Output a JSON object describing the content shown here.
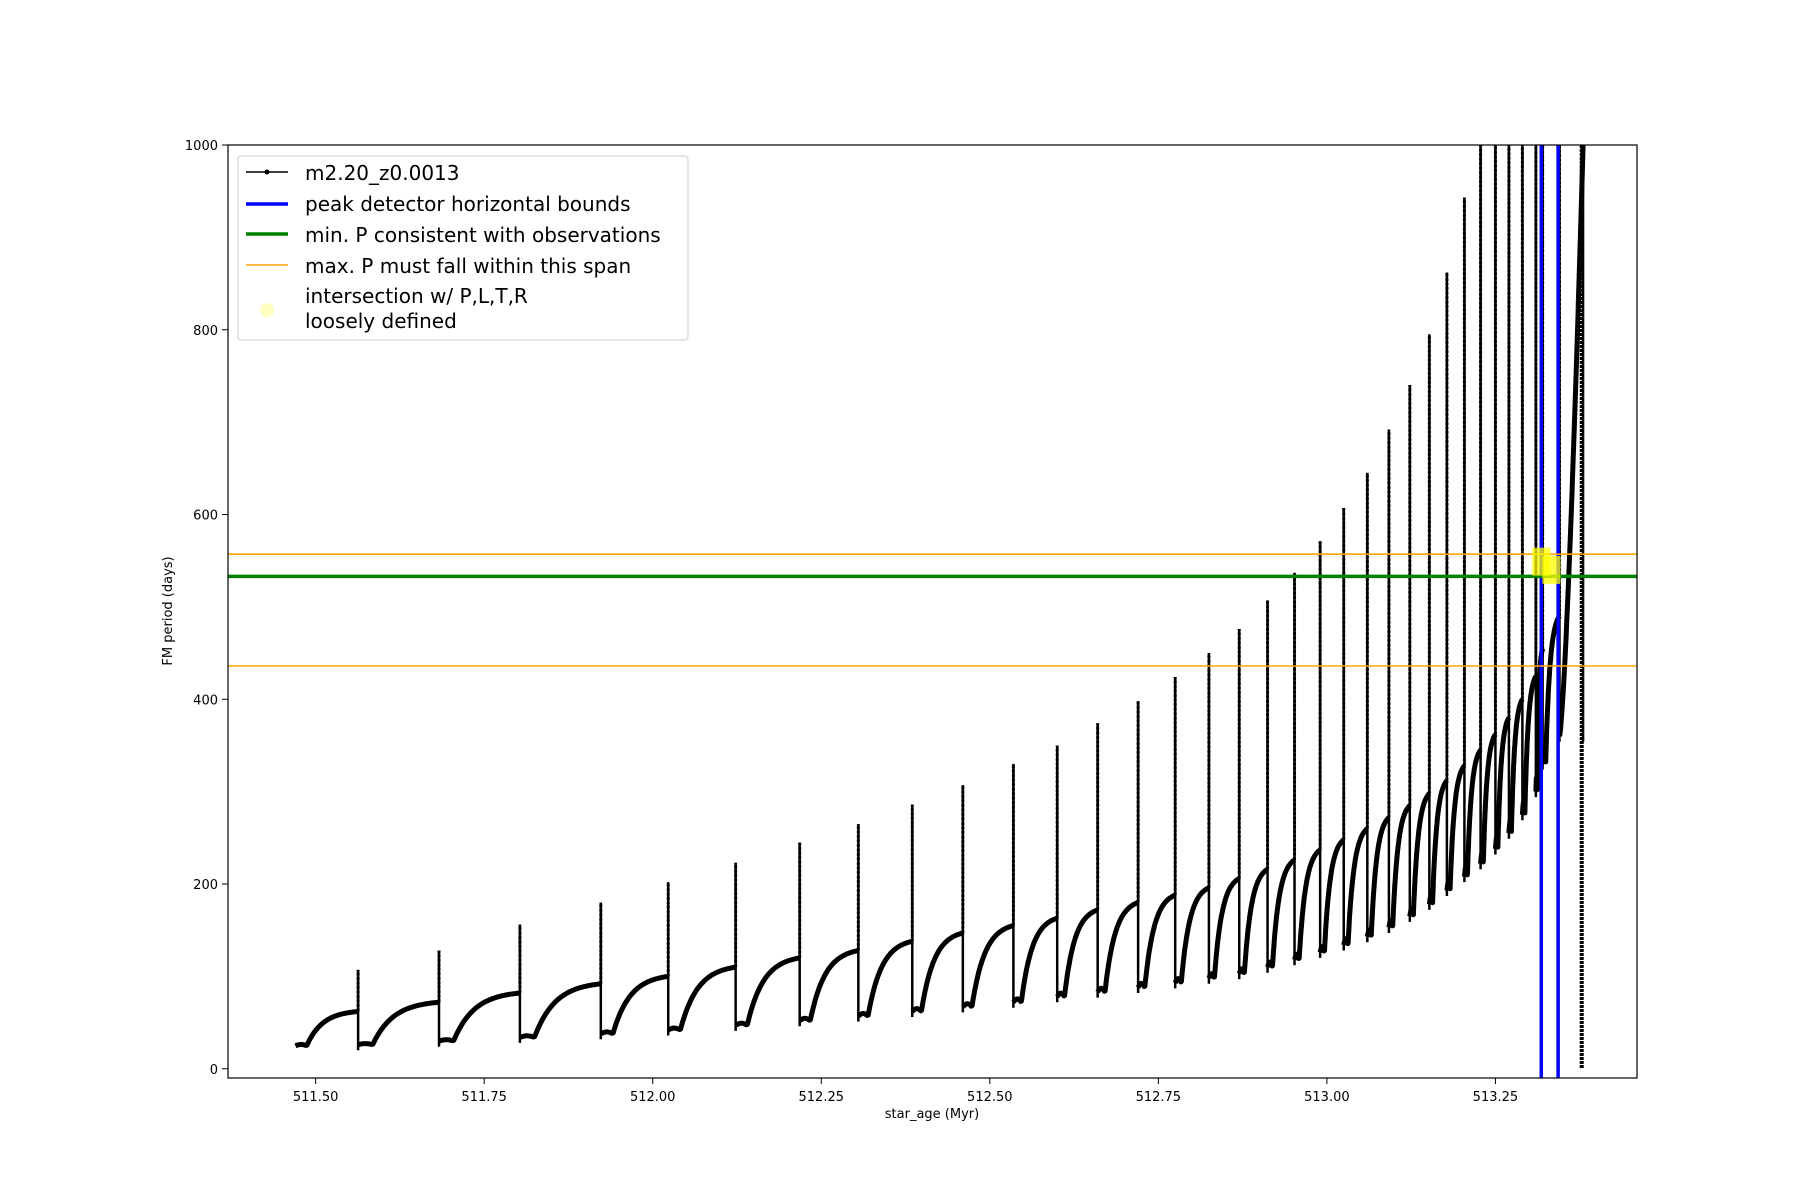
{
  "chart_data": {
    "type": "line",
    "title": "",
    "xlabel": "star_age (Myr)",
    "ylabel": "FM period (days)",
    "xlim": [
      511.37,
      513.46
    ],
    "ylim": [
      -10,
      1000
    ],
    "xticks": [
      511.5,
      511.75,
      512.0,
      512.25,
      512.5,
      512.75,
      513.0,
      513.25
    ],
    "xtick_labels": [
      "511.50",
      "511.75",
      "512.00",
      "512.25",
      "512.50",
      "512.75",
      "513.00",
      "513.25"
    ],
    "yticks": [
      0,
      200,
      400,
      600,
      800,
      1000
    ],
    "ytick_labels": [
      "0",
      "200",
      "400",
      "600",
      "800",
      "1000"
    ],
    "grid": false,
    "legend_position": "upper-left",
    "series": [
      {
        "name": "m2.20_z0.0013",
        "color": "#000000",
        "style": "line-with-dots",
        "description_segments": "thermal pulse cycles: each cycle rises from a trough to a plateau, then a sharp spike",
        "cycles": [
          {
            "start": 511.47,
            "end": 511.563,
            "low": 25,
            "high": 62,
            "spike": 107
          },
          {
            "start": 511.563,
            "end": 511.683,
            "low": 26,
            "high": 72,
            "spike": 128
          },
          {
            "start": 511.683,
            "end": 511.803,
            "low": 30,
            "high": 82,
            "spike": 156
          },
          {
            "start": 511.803,
            "end": 511.923,
            "low": 34,
            "high": 92,
            "spike": 180
          },
          {
            "start": 511.923,
            "end": 512.023,
            "low": 38,
            "high": 100,
            "spike": 202
          },
          {
            "start": 512.023,
            "end": 512.123,
            "low": 42,
            "high": 110,
            "spike": 223
          },
          {
            "start": 512.123,
            "end": 512.218,
            "low": 47,
            "high": 120,
            "spike": 245
          },
          {
            "start": 512.218,
            "end": 512.305,
            "low": 52,
            "high": 128,
            "spike": 265
          },
          {
            "start": 512.305,
            "end": 512.385,
            "low": 57,
            "high": 138,
            "spike": 286
          },
          {
            "start": 512.385,
            "end": 512.46,
            "low": 62,
            "high": 147,
            "spike": 307
          },
          {
            "start": 512.46,
            "end": 512.535,
            "low": 67,
            "high": 155,
            "spike": 330
          },
          {
            "start": 512.535,
            "end": 512.6,
            "low": 72,
            "high": 163,
            "spike": 350
          },
          {
            "start": 512.6,
            "end": 512.66,
            "low": 78,
            "high": 172,
            "spike": 374
          },
          {
            "start": 512.66,
            "end": 512.72,
            "low": 83,
            "high": 180,
            "spike": 398
          },
          {
            "start": 512.72,
            "end": 512.775,
            "low": 88,
            "high": 188,
            "spike": 424
          },
          {
            "start": 512.775,
            "end": 512.825,
            "low": 93,
            "high": 196,
            "spike": 450
          },
          {
            "start": 512.825,
            "end": 512.87,
            "low": 98,
            "high": 206,
            "spike": 476
          },
          {
            "start": 512.87,
            "end": 512.912,
            "low": 103,
            "high": 216,
            "spike": 507
          },
          {
            "start": 512.912,
            "end": 512.952,
            "low": 110,
            "high": 226,
            "spike": 537
          },
          {
            "start": 512.952,
            "end": 512.99,
            "low": 118,
            "high": 237,
            "spike": 571
          },
          {
            "start": 512.99,
            "end": 513.025,
            "low": 126,
            "high": 248,
            "spike": 607
          },
          {
            "start": 513.025,
            "end": 513.06,
            "low": 134,
            "high": 260,
            "spike": 645
          },
          {
            "start": 513.06,
            "end": 513.092,
            "low": 143,
            "high": 272,
            "spike": 692
          },
          {
            "start": 513.092,
            "end": 513.123,
            "low": 153,
            "high": 285,
            "spike": 740
          },
          {
            "start": 513.123,
            "end": 513.152,
            "low": 165,
            "high": 298,
            "spike": 795
          },
          {
            "start": 513.152,
            "end": 513.178,
            "low": 178,
            "high": 312,
            "spike": 862
          },
          {
            "start": 513.178,
            "end": 513.204,
            "low": 193,
            "high": 328,
            "spike": 943
          },
          {
            "start": 513.204,
            "end": 513.228,
            "low": 208,
            "high": 345,
            "spike": 1000
          },
          {
            "start": 513.228,
            "end": 513.25,
            "low": 222,
            "high": 362,
            "spike": 1000
          },
          {
            "start": 513.25,
            "end": 513.27,
            "low": 238,
            "high": 380,
            "spike": 1000
          },
          {
            "start": 513.27,
            "end": 513.29,
            "low": 255,
            "high": 400,
            "spike": 1000
          },
          {
            "start": 513.29,
            "end": 513.31,
            "low": 275,
            "high": 425,
            "spike": 1000
          },
          {
            "start": 513.31,
            "end": 513.32,
            "low": 300,
            "high": 455,
            "spike": 1000
          },
          {
            "start": 513.32,
            "end": 513.345,
            "low": 330,
            "high": 490,
            "spike": 1000
          },
          {
            "start": 513.345,
            "end": 513.38,
            "low": 360,
            "high": 1000,
            "spike": 1000
          }
        ],
        "final_drop": {
          "x": 513.378,
          "from": 1000,
          "to": 0
        }
      },
      {
        "name": "peak detector horizontal bounds",
        "color": "#0000ff",
        "type": "vline",
        "x": [
          513.318,
          513.343
        ]
      },
      {
        "name": "min. P consistent with observations",
        "color": "#008000",
        "type": "hline",
        "y": 533
      },
      {
        "name": "max. P must fall within this span",
        "color": "#ffa500",
        "type": "hline",
        "y": [
          557,
          436
        ]
      },
      {
        "name": "intersection w/ P,L,T,R\nloosely defined",
        "color": "#ffff00",
        "type": "marker",
        "points": [
          {
            "x": 513.318,
            "y": 549
          },
          {
            "x": 513.333,
            "y": 540
          }
        ]
      }
    ]
  },
  "legend": {
    "items": [
      {
        "label": "m2.20_z0.0013"
      },
      {
        "label": "peak detector horizontal bounds"
      },
      {
        "label": "min. P consistent with observations"
      },
      {
        "label": "max. P must fall within this span"
      },
      {
        "label_line1": "intersection w/ P,L,T,R",
        "label_line2": "loosely defined"
      }
    ]
  }
}
